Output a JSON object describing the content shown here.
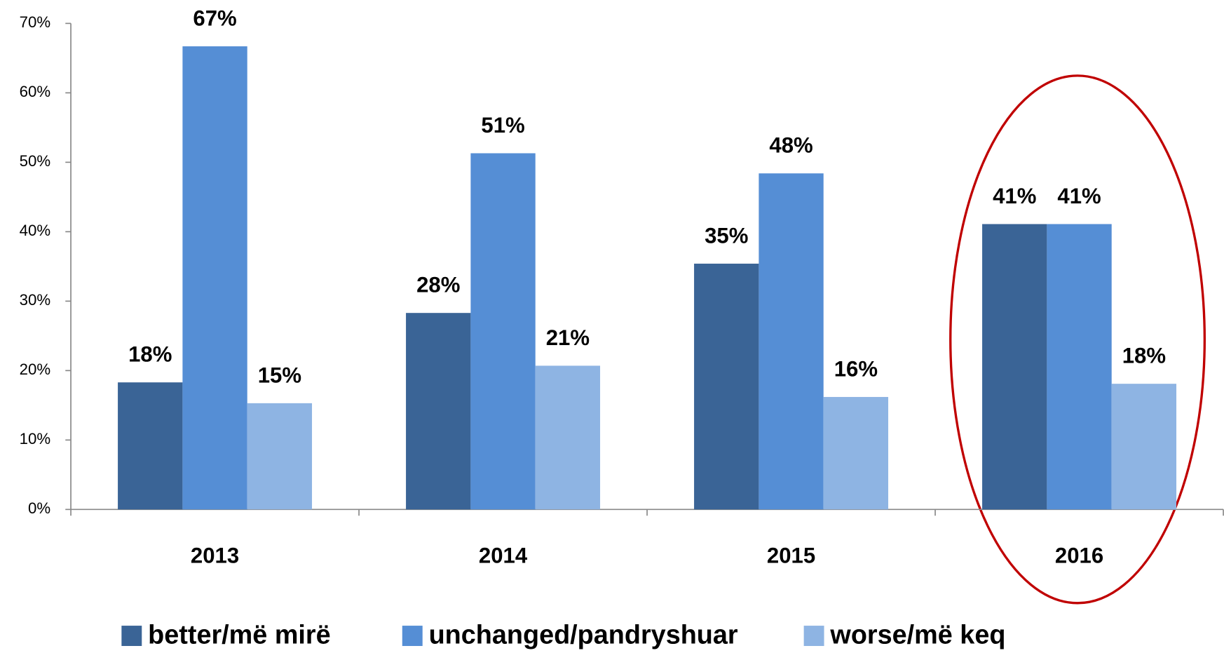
{
  "chart_data": {
    "type": "bar",
    "categories": [
      "2013",
      "2014",
      "2015",
      "2016"
    ],
    "series": [
      {
        "name": "better/më mirë",
        "color": "#3a6496",
        "values": [
          18.3,
          28.3,
          35.4,
          41.1
        ],
        "value_labels": [
          "18%",
          "28%",
          "35%",
          "41%"
        ]
      },
      {
        "name": "unchanged/pandryshuar",
        "color": "#558ed5",
        "values": [
          66.7,
          51.3,
          48.4,
          41.1
        ],
        "value_labels": [
          "67%",
          "51%",
          "48%",
          "41%"
        ]
      },
      {
        "name": "worse/më keq",
        "color": "#8eb4e3",
        "values": [
          15.3,
          20.7,
          16.2,
          18.1
        ],
        "value_labels": [
          "15%",
          "21%",
          "16%",
          "18%"
        ]
      }
    ],
    "ylim": [
      0,
      70
    ],
    "yticks": [
      {
        "value": 0,
        "label": "0%"
      },
      {
        "value": 10,
        "label": "10%"
      },
      {
        "value": 20,
        "label": "20%"
      },
      {
        "value": 30,
        "label": "30%"
      },
      {
        "value": 40,
        "label": "40%"
      },
      {
        "value": 50,
        "label": "50%"
      },
      {
        "value": 60,
        "label": "60%"
      },
      {
        "value": 70,
        "label": "70%"
      }
    ],
    "grid": false,
    "legend": "bottom"
  }
}
